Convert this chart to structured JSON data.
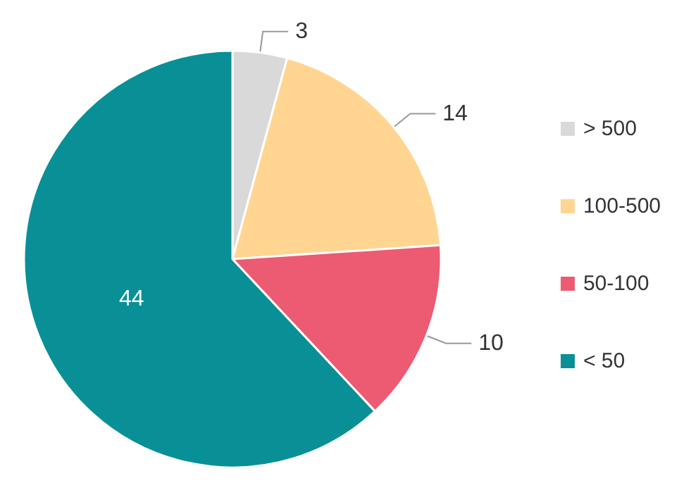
{
  "chart_data": {
    "type": "pie",
    "categories": [
      "> 500",
      "100-500",
      "50-100",
      "< 50"
    ],
    "values": [
      3,
      14,
      10,
      44
    ],
    "colors": [
      "#d9d9d9",
      "#ffd591",
      "#ec5b72",
      "#089096"
    ],
    "data_labels": true,
    "legend": "right"
  }
}
